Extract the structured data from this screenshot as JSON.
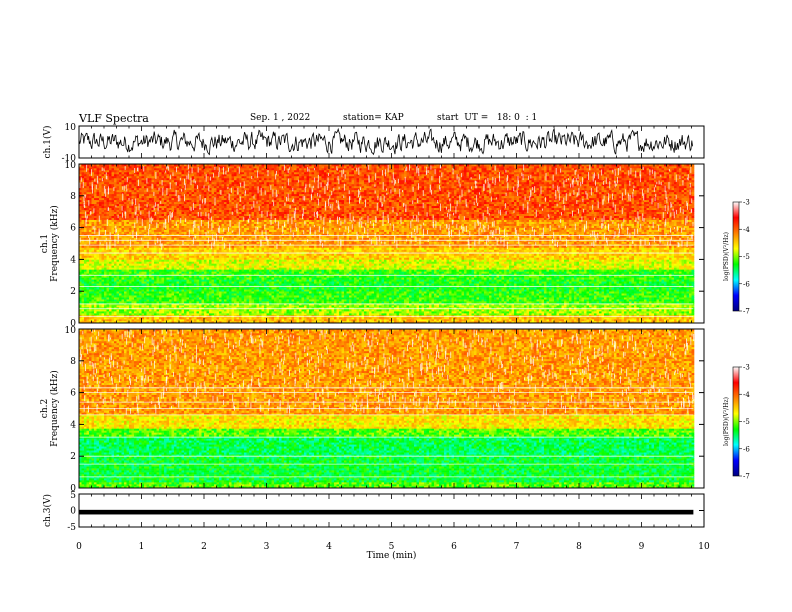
{
  "header": {
    "title": "VLF Spectra",
    "date": "Sep. 1 , 2022",
    "station": "station= KAP",
    "start_ut": "start  UT =   18: 0  : 1"
  },
  "chart_data": [
    {
      "type": "line",
      "panel": "ch1-waveform",
      "ylabel": "ch.1(V)",
      "ylim": [
        -10,
        10
      ],
      "yticks": [
        "10",
        "-10"
      ],
      "xlim": [
        0,
        10
      ],
      "data_extent_x": [
        0,
        9.83
      ],
      "series": [
        {
          "values_description_range": [
            -8,
            8
          ]
        }
      ],
      "grid": false
    },
    {
      "type": "heatmap",
      "panel": "ch1-spectrogram",
      "ylabel_line1": "ch.1",
      "ylabel_line2": "Frequency  (kHz)",
      "ylim": [
        0,
        10
      ],
      "yticks": [
        "0",
        "2",
        "4",
        "6",
        "8",
        "10"
      ],
      "xlim": [
        0,
        10
      ],
      "colorbar": {
        "label": "log(PSD)(V²/Hz)",
        "range": [
          -7,
          -3
        ],
        "ticks": [
          "-3",
          "-4",
          "-5",
          "-6",
          "-7"
        ],
        "colors": [
          "#ff0000",
          "#ff8000",
          "#ffff00",
          "#00ff00",
          "#00ffff",
          "#0000ff",
          "#000080"
        ]
      },
      "bands_khz": [
        {
          "from": 0,
          "to": 0.5,
          "level": -4.0
        },
        {
          "from": 0.5,
          "to": 1.3,
          "level": -4.6
        },
        {
          "from": 1.3,
          "to": 2.0,
          "level": -4.9
        },
        {
          "from": 2.0,
          "to": 2.8,
          "level": -5.0
        },
        {
          "from": 2.8,
          "to": 3.4,
          "level": -4.9
        },
        {
          "from": 3.4,
          "to": 4.0,
          "level": -4.4
        },
        {
          "from": 4.0,
          "to": 4.8,
          "level": -4.1
        },
        {
          "from": 4.8,
          "to": 6.5,
          "level": -3.8
        },
        {
          "from": 6.5,
          "to": 10,
          "level": -3.4
        }
      ],
      "lines_khz": [
        0.4,
        0.9,
        1.2,
        2.3,
        3.0,
        4.4,
        4.9,
        5.2,
        5.5
      ]
    },
    {
      "type": "heatmap",
      "panel": "ch2-spectrogram",
      "ylabel_line1": "ch.2",
      "ylabel_line2": "Frequency  (kHz)",
      "ylim": [
        0,
        10
      ],
      "yticks": [
        "0",
        "2",
        "4",
        "6",
        "8",
        "10"
      ],
      "xlim": [
        0,
        10
      ],
      "colorbar": {
        "label": "log(PSD)(V²/Hz)",
        "range": [
          -7,
          -3
        ],
        "ticks": [
          "-3",
          "-4",
          "-5",
          "-6",
          "-7"
        ],
        "colors": [
          "#ff0000",
          "#ff8000",
          "#ffff00",
          "#00ff00",
          "#00ffff",
          "#0000ff",
          "#000080"
        ]
      },
      "bands_khz": [
        {
          "from": 0,
          "to": 0.4,
          "level": -4.8
        },
        {
          "from": 0.4,
          "to": 2.0,
          "level": -5.1
        },
        {
          "from": 2.0,
          "to": 3.2,
          "level": -5.2
        },
        {
          "from": 3.2,
          "to": 3.8,
          "level": -4.8
        },
        {
          "from": 3.8,
          "to": 4.6,
          "level": -4.2
        },
        {
          "from": 4.6,
          "to": 10,
          "level": -3.8
        }
      ],
      "lines_khz": [
        0.7,
        1.5,
        2.0,
        3.2,
        4.6,
        5.0,
        5.4,
        6.0,
        6.3
      ]
    },
    {
      "type": "line",
      "panel": "ch3-waveform",
      "ylabel": "ch.3(V)",
      "ylim": [
        -5,
        5
      ],
      "yticks": [
        "5",
        "0",
        "-5"
      ],
      "xlim": [
        0,
        10
      ],
      "data_extent_x": [
        0,
        9.83
      ],
      "series": [
        {
          "band_values": [
            -1.2,
            0.2
          ]
        }
      ],
      "grid": false
    }
  ],
  "x_axis": {
    "label": "Time  (min)",
    "ticks": [
      "0",
      "1",
      "2",
      "3",
      "4",
      "5",
      "6",
      "7",
      "8",
      "9",
      "10"
    ],
    "range": [
      0,
      10
    ]
  }
}
